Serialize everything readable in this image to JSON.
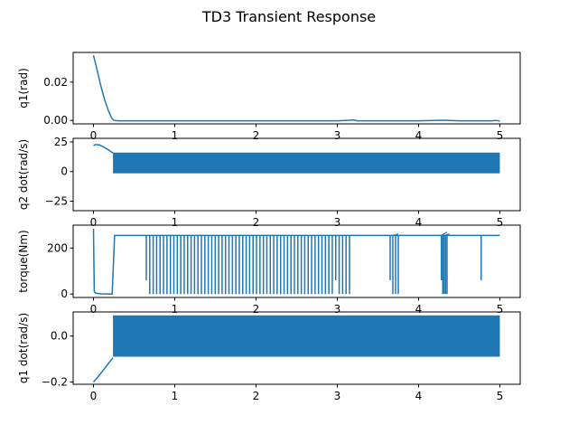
{
  "figure": {
    "title": "TD3 Transient Response",
    "line_color": "#1f77b4"
  },
  "chart_data": [
    {
      "type": "line",
      "title": "",
      "xlabel": "",
      "ylabel": "q1(rad)",
      "xlim": [
        -0.25,
        5.25
      ],
      "ylim": [
        -0.0018,
        0.0355
      ],
      "xticks": [
        0,
        1,
        2,
        3,
        4,
        5
      ],
      "yticks": [
        0.0,
        0.02
      ],
      "ytick_labels": [
        "0.00",
        "0.02"
      ],
      "grid": false,
      "series": [
        {
          "x": [
            0.0,
            0.03,
            0.06,
            0.1,
            0.14,
            0.18,
            0.22,
            0.25,
            0.3,
            1.0,
            2.0,
            3.0,
            3.2,
            3.25,
            4.0,
            4.3,
            4.5,
            4.9,
            4.95,
            5.0
          ],
          "values": [
            0.034,
            0.029,
            0.0235,
            0.0165,
            0.0105,
            0.0055,
            0.0015,
            0.0,
            -0.0002,
            -0.0002,
            -0.0002,
            -0.0002,
            0.0002,
            -0.0002,
            -0.0002,
            0.0001,
            -0.0002,
            -0.0002,
            0.0,
            -0.0003
          ]
        }
      ]
    },
    {
      "type": "line",
      "title": "",
      "xlabel": "",
      "ylabel": "q2 dot(rad/s)",
      "xlim": [
        -0.25,
        5.25
      ],
      "ylim": [
        -33,
        28
      ],
      "xticks": [
        0,
        1,
        2,
        3,
        4,
        5
      ],
      "yticks": [
        -25,
        0,
        25
      ],
      "ytick_labels": [
        "−25",
        "0",
        "25"
      ],
      "grid": false,
      "series": [
        {
          "x": [
            0.0,
            0.03,
            0.08,
            0.13,
            0.18,
            0.22,
            0.245
          ],
          "values": [
            22,
            22.8,
            22.3,
            20.5,
            18.5,
            16.5,
            15.5
          ]
        }
      ],
      "oscillation": {
        "x_start": 0.24,
        "x_end": 5.0,
        "min": -1.5,
        "max": 16
      }
    },
    {
      "type": "line",
      "title": "",
      "xlabel": "",
      "ylabel": "torque(Nm)",
      "xlim": [
        -0.25,
        5.25
      ],
      "ylim": [
        -15,
        300
      ],
      "xticks": [
        0,
        1,
        2,
        3,
        4,
        5
      ],
      "yticks": [
        0,
        200
      ],
      "ytick_labels": [
        "0",
        "200"
      ],
      "grid": false,
      "series": [
        {
          "x": [
            0.0,
            0.01,
            0.03,
            0.1,
            0.22,
            0.23,
            0.26,
            0.5,
            5.0
          ],
          "values": [
            285,
            10,
            3,
            1,
            0,
            0,
            255,
            255,
            255
          ]
        }
      ],
      "dips": [
        {
          "start": 0.65,
          "end": 3.15,
          "count": 60,
          "min": 0
        },
        {
          "start": 3.65,
          "end": 3.75,
          "count": 4,
          "min": 0
        },
        {
          "start": 4.28,
          "end": 4.35,
          "count": 5,
          "min": 0
        },
        {
          "start": 4.77,
          "end": 4.79,
          "count": 1,
          "min": 0
        }
      ]
    },
    {
      "type": "line",
      "title": "",
      "xlabel": "",
      "ylabel": "q1 dot(rad/s)",
      "xlim": [
        -0.25,
        5.25
      ],
      "ylim": [
        -0.21,
        0.105
      ],
      "xticks": [
        0,
        1,
        2,
        3,
        4,
        5
      ],
      "yticks": [
        -0.2,
        0.0
      ],
      "ytick_labels": [
        "−0.2",
        "0.0"
      ],
      "grid": false,
      "series": [
        {
          "x": [
            0.0,
            0.05,
            0.1,
            0.15,
            0.2,
            0.24
          ],
          "values": [
            -0.2,
            -0.18,
            -0.158,
            -0.135,
            -0.112,
            -0.095
          ]
        }
      ],
      "oscillation": {
        "x_start": 0.24,
        "x_end": 5.0,
        "min": -0.09,
        "max": 0.09
      }
    }
  ]
}
